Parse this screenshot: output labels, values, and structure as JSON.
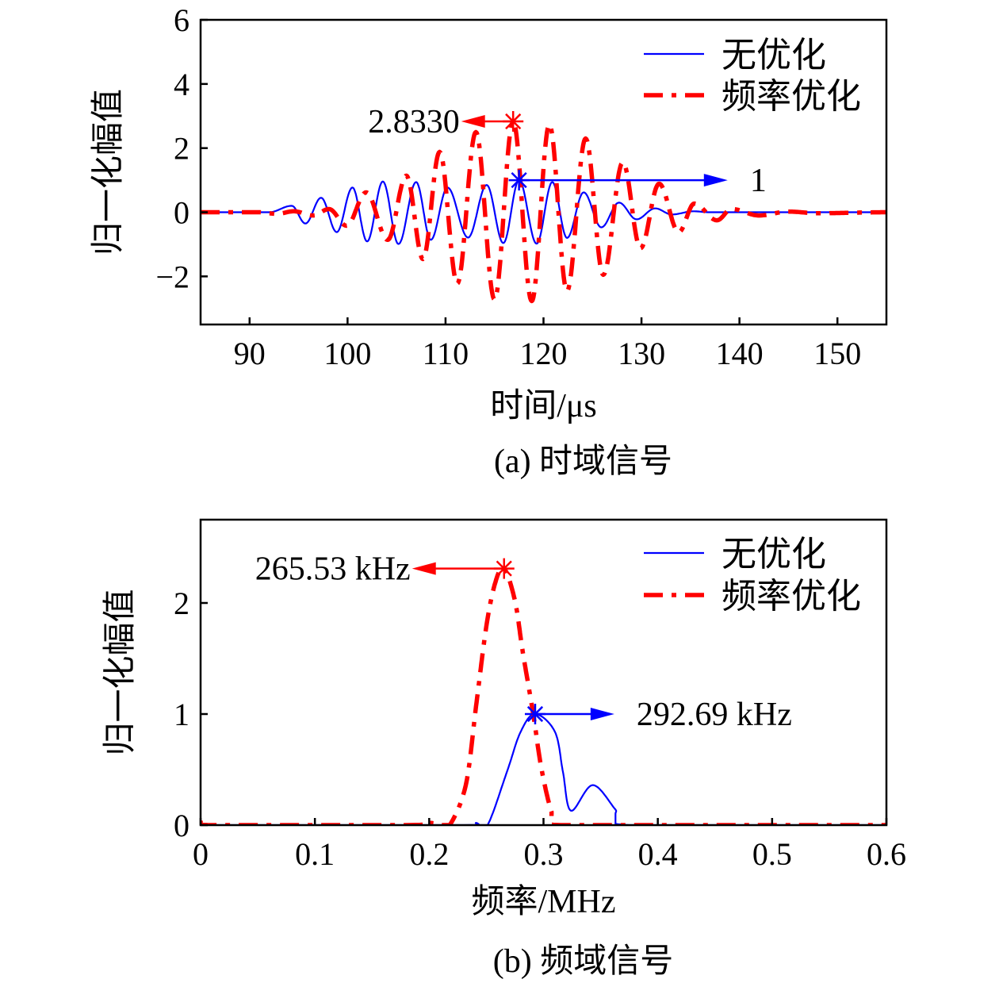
{
  "chart_data": [
    {
      "type": "line",
      "caption": "(a) 时域信号",
      "xlabel": "时间/μs",
      "ylabel": "归一化幅值",
      "xlim": [
        85,
        155
      ],
      "ylim": [
        -3.5,
        6
      ],
      "xticks": [
        90,
        100,
        110,
        120,
        130,
        140,
        150
      ],
      "yticks": [
        -2,
        0,
        2,
        4,
        6
      ],
      "ytick_labels": [
        "−2",
        "0",
        "2",
        "4",
        "6"
      ],
      "grid": false,
      "legend_placement": "top-right",
      "series": [
        {
          "name": "无优化",
          "color": "#0000ff",
          "style": "solid",
          "extrema": [
            [
              85,
              0
            ],
            [
              92,
              0
            ],
            [
              94.3,
              0.2
            ],
            [
              95.7,
              -0.35
            ],
            [
              97.3,
              0.45
            ],
            [
              98.9,
              -0.62
            ],
            [
              100.5,
              0.77
            ],
            [
              102.0,
              -0.91
            ],
            [
              103.6,
              0.96
            ],
            [
              105.2,
              -0.99
            ],
            [
              107.0,
              0.94
            ],
            [
              108.5,
              -0.86
            ],
            [
              110.2,
              0.77
            ],
            [
              112.3,
              -0.79
            ],
            [
              114.2,
              0.85
            ],
            [
              115.9,
              -0.96
            ],
            [
              117.5,
              1.0
            ],
            [
              119.3,
              -0.98
            ],
            [
              120.9,
              0.94
            ],
            [
              122.4,
              -0.8
            ],
            [
              124.1,
              0.62
            ],
            [
              125.9,
              -0.47
            ],
            [
              127.7,
              0.3
            ],
            [
              129.5,
              -0.22
            ],
            [
              131.4,
              0.12
            ],
            [
              133.1,
              -0.07
            ],
            [
              135.3,
              0.03
            ],
            [
              137,
              0
            ],
            [
              155,
              0
            ]
          ]
        },
        {
          "name": "频率优化",
          "color": "#ff0000",
          "style": "dash-dot",
          "extrema": [
            [
              85,
              0
            ],
            [
              91,
              0
            ],
            [
              92.8,
              -0.05
            ],
            [
              94.5,
              0.03
            ],
            [
              96.5,
              -0.1
            ],
            [
              98.1,
              0.1
            ],
            [
              99.9,
              -0.42
            ],
            [
              101.9,
              0.62
            ],
            [
              104.1,
              -0.86
            ],
            [
              106.0,
              1.14
            ],
            [
              107.7,
              -1.46
            ],
            [
              109.4,
              1.88
            ],
            [
              111.2,
              -2.22
            ],
            [
              113.1,
              2.5
            ],
            [
              115.0,
              -2.72
            ],
            [
              116.9,
              2.833
            ],
            [
              118.8,
              -2.77
            ],
            [
              120.6,
              2.74
            ],
            [
              122.4,
              -2.45
            ],
            [
              124.3,
              2.3
            ],
            [
              126.1,
              -1.95
            ],
            [
              128.1,
              1.56
            ],
            [
              129.9,
              -1.12
            ],
            [
              131.8,
              0.89
            ],
            [
              133.8,
              -0.62
            ],
            [
              135.4,
              0.27
            ],
            [
              137.7,
              -0.25
            ],
            [
              139.2,
              0.1
            ],
            [
              142,
              -0.1
            ],
            [
              145,
              0.02
            ],
            [
              148,
              -0.03
            ],
            [
              155,
              0
            ]
          ]
        }
      ],
      "annotations": [
        {
          "text": "2.8330",
          "point": [
            116.9,
            2.833
          ],
          "arrow_to": [
            111.6,
            2.833
          ],
          "color": "#ff0000"
        },
        {
          "text": "1",
          "point": [
            117.5,
            1
          ],
          "arrow_to": [
            138.8,
            1
          ],
          "color": "#0000ff"
        }
      ]
    },
    {
      "type": "line",
      "caption": "(b) 频域信号",
      "xlabel": "频率/MHz",
      "ylabel": "归一化幅值",
      "xlim": [
        0,
        0.6
      ],
      "ylim": [
        0,
        2.75
      ],
      "xticks": [
        0,
        0.1,
        0.2,
        0.3,
        0.4,
        0.5,
        0.6
      ],
      "yticks": [
        0,
        1,
        2
      ],
      "ytick_labels": [
        "0",
        "1",
        "2"
      ],
      "grid": false,
      "legend_placement": "top-right",
      "series": [
        {
          "name": "无优化",
          "color": "#0000ff",
          "style": "solid",
          "points": [
            [
              0,
              0.03
            ],
            [
              0.01,
              0
            ],
            [
              0.23,
              0
            ],
            [
              0.241,
              0.02
            ],
            [
              0.251,
              0
            ],
            [
              0.268,
              0.48
            ],
            [
              0.28,
              0.84
            ],
            [
              0.2927,
              1.0
            ],
            [
              0.31,
              0.84
            ],
            [
              0.317,
              0.48
            ],
            [
              0.324,
              0.13
            ],
            [
              0.343,
              0.36
            ],
            [
              0.363,
              0.14
            ],
            [
              0.375,
              0
            ],
            [
              0.6,
              0
            ]
          ]
        },
        {
          "name": "频率优化",
          "color": "#ff0000",
          "style": "dash-dot",
          "points": [
            [
              0,
              0.03
            ],
            [
              0.01,
              0
            ],
            [
              0.18,
              0
            ],
            [
              0.2,
              0.02
            ],
            [
              0.21,
              0
            ],
            [
              0.218,
              0
            ],
            [
              0.232,
              0.36
            ],
            [
              0.241,
              1.07
            ],
            [
              0.25,
              1.79
            ],
            [
              0.258,
              2.19
            ],
            [
              0.2655,
              2.31
            ],
            [
              0.275,
              2.02
            ],
            [
              0.282,
              1.55
            ],
            [
              0.291,
              1.0
            ],
            [
              0.298,
              0.52
            ],
            [
              0.307,
              0.12
            ],
            [
              0.315,
              0
            ],
            [
              0.6,
              0
            ]
          ]
        }
      ],
      "annotations": [
        {
          "text": "265.53 kHz",
          "point": [
            0.2655,
            2.31
          ],
          "arrow_to": [
            0.185,
            2.31
          ],
          "color": "#ff0000"
        },
        {
          "text": "292.69 kHz",
          "point": [
            0.2927,
            1.0
          ],
          "arrow_to": [
            0.362,
            1.0
          ],
          "color": "#0000ff"
        }
      ]
    }
  ]
}
